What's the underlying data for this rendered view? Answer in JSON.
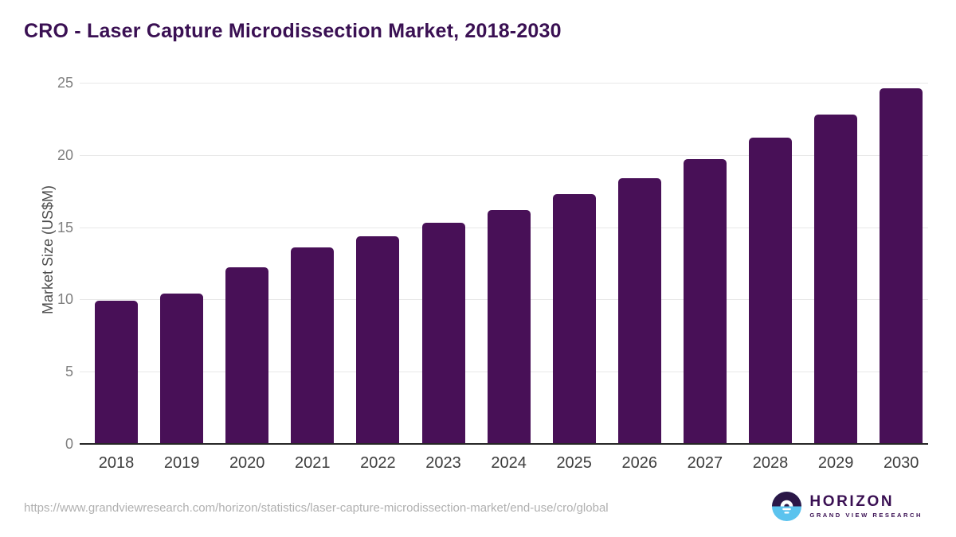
{
  "title": "CRO - Laser Capture Microdissection Market, 2018-2030",
  "chart_data": {
    "type": "bar",
    "title": "CRO - Laser Capture Microdissection Market, 2018-2030",
    "categories": [
      "2018",
      "2019",
      "2020",
      "2021",
      "2022",
      "2023",
      "2024",
      "2025",
      "2026",
      "2027",
      "2028",
      "2029",
      "2030"
    ],
    "values": [
      9.9,
      10.4,
      12.2,
      13.6,
      14.4,
      15.3,
      16.2,
      17.3,
      18.4,
      19.7,
      21.2,
      22.8,
      24.6
    ],
    "xlabel": "",
    "ylabel": "Market Size (US$M)",
    "ylim": [
      0,
      25
    ],
    "yticks": [
      0,
      5,
      10,
      15,
      20,
      25
    ],
    "grid": true,
    "legend": false,
    "bar_color": "#481057"
  },
  "footer": {
    "source_url": "https://www.grandviewresearch.com/horizon/statistics/laser-capture-microdissection-market/end-use/cro/global",
    "logo": {
      "brand": "HORIZON",
      "tagline": "GRAND VIEW RESEARCH"
    }
  },
  "colors": {
    "title_text": "#3a1053",
    "bar": "#481057",
    "gridline": "#e8e8e8",
    "axis_line": "#262626",
    "y_tick_text": "#7f7f7f",
    "x_tick_text": "#3d3d3d",
    "y_axis_label_text": "#4d4d4d",
    "source_url_text": "#b0b0b0",
    "logo_purple": "#2b1747",
    "logo_blue": "#5bc3ee"
  }
}
